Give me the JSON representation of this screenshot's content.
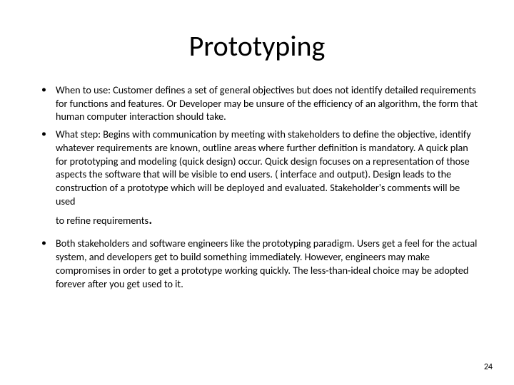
{
  "title": "Prototyping",
  "bullets": [
    "When to use: Customer defines a set of general objectives but does not identify detailed requirements for functions and features. Or Developer may be unsure of the efficiency of an algorithm, the form that human computer interaction should take.",
    "What step: Begins with communication by meeting with stakeholders to define the objective, identify whatever requirements are known, outline areas where further definition is mandatory. A quick plan for prototyping and modeling (quick design) occur. Quick design focuses on a representation of those aspects the software that will be visible to end users. ( interface and output). Design leads to the construction of a prototype which will be deployed and evaluated. Stakeholder's comments will be used"
  ],
  "refine_text": "to refine requirements",
  "bullet3": "Both stakeholders and software engineers like the prototyping paradigm. Users get a feel for the actual system, and developers get to build something immediately. However, engineers may make compromises in order to get a prototype working quickly. The less-than-ideal choice may be adopted forever after you get used to it.",
  "page_number": "24",
  "colors": {
    "text": "#000000",
    "background": "#ffffff"
  },
  "typography": {
    "title_fontsize": 40,
    "body_fontsize": 14.2,
    "pagenum_fontsize": 12,
    "font_family": "Calibri"
  }
}
